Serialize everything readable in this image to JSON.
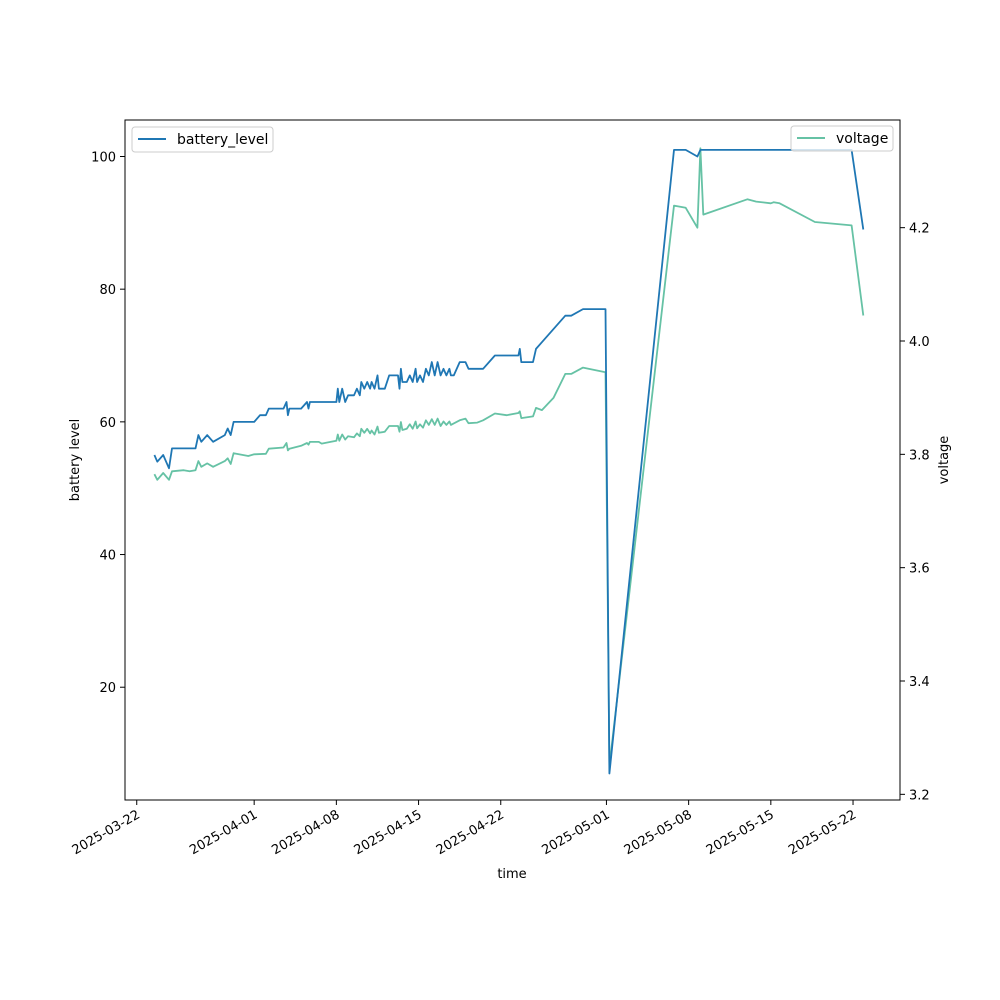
{
  "chart_data": {
    "type": "line",
    "title": "",
    "xlabel": "time",
    "ylabel_left": "battery level",
    "ylabel_right": "voltage",
    "xlim": [
      "2025-03-21T00:00",
      "2025-05-26T00:00"
    ],
    "ylim_left": [
      3,
      105.5
    ],
    "ylim_right": [
      3.19,
      4.39
    ],
    "x_ticks": [
      "2025-03-22",
      "2025-04-01",
      "2025-04-08",
      "2025-04-15",
      "2025-04-22",
      "2025-05-01",
      "2025-05-08",
      "2025-05-15",
      "2025-05-22"
    ],
    "y_ticks_left": [
      20,
      40,
      60,
      80,
      100
    ],
    "y_ticks_right": [
      "3.2",
      "3.4",
      "3.6",
      "3.8",
      "4.0",
      "4.2"
    ],
    "grid": false,
    "legend_left": {
      "position": "upper-left",
      "label": "battery_level",
      "color": "#1f77b4"
    },
    "legend_right": {
      "position": "upper-right",
      "label": "voltage",
      "color": "#66c2a5"
    },
    "series": [
      {
        "name": "battery_level",
        "axis": "left",
        "color": "#1f77b4",
        "points": [
          [
            "2025-03-23T12:00",
            55
          ],
          [
            "2025-03-23T18:00",
            54
          ],
          [
            "2025-03-24T06:00",
            55
          ],
          [
            "2025-03-24T18:00",
            53
          ],
          [
            "2025-03-25T00:00",
            56
          ],
          [
            "2025-03-27T00:00",
            56
          ],
          [
            "2025-03-27T06:00",
            58
          ],
          [
            "2025-03-27T12:00",
            57
          ],
          [
            "2025-03-28T00:00",
            58
          ],
          [
            "2025-03-28T12:00",
            57
          ],
          [
            "2025-03-29T12:00",
            58
          ],
          [
            "2025-03-29T18:00",
            59
          ],
          [
            "2025-03-30T00:00",
            58
          ],
          [
            "2025-03-30T06:00",
            60
          ],
          [
            "2025-04-01T00:00",
            60
          ],
          [
            "2025-04-01T12:00",
            61
          ],
          [
            "2025-04-02T00:00",
            61
          ],
          [
            "2025-04-02T06:00",
            62
          ],
          [
            "2025-04-03T12:00",
            62
          ],
          [
            "2025-04-03T18:00",
            63
          ],
          [
            "2025-04-03T21:00",
            61
          ],
          [
            "2025-04-04T00:00",
            62
          ],
          [
            "2025-04-05T00:00",
            62
          ],
          [
            "2025-04-05T12:00",
            63
          ],
          [
            "2025-04-05T15:00",
            62
          ],
          [
            "2025-04-05T18:00",
            63
          ],
          [
            "2025-04-08T00:00",
            63
          ],
          [
            "2025-04-08T03:00",
            65
          ],
          [
            "2025-04-08T06:00",
            63
          ],
          [
            "2025-04-08T12:00",
            65
          ],
          [
            "2025-04-08T18:00",
            63
          ],
          [
            "2025-04-09T00:00",
            64
          ],
          [
            "2025-04-09T12:00",
            64
          ],
          [
            "2025-04-09T18:00",
            65
          ],
          [
            "2025-04-10T00:00",
            64
          ],
          [
            "2025-04-10T03:00",
            66
          ],
          [
            "2025-04-10T09:00",
            65
          ],
          [
            "2025-04-10T15:00",
            66
          ],
          [
            "2025-04-10T21:00",
            65
          ],
          [
            "2025-04-11T00:00",
            66
          ],
          [
            "2025-04-11T06:00",
            65
          ],
          [
            "2025-04-11T12:00",
            67
          ],
          [
            "2025-04-11T15:00",
            65
          ],
          [
            "2025-04-12T03:00",
            65
          ],
          [
            "2025-04-12T12:00",
            67
          ],
          [
            "2025-04-13T06:00",
            67
          ],
          [
            "2025-04-13T09:00",
            65
          ],
          [
            "2025-04-13T12:00",
            68
          ],
          [
            "2025-04-13T15:00",
            66
          ],
          [
            "2025-04-14T00:00",
            66
          ],
          [
            "2025-04-14T06:00",
            67
          ],
          [
            "2025-04-14T12:00",
            66
          ],
          [
            "2025-04-14T18:00",
            68
          ],
          [
            "2025-04-14T21:00",
            66
          ],
          [
            "2025-04-15T03:00",
            67
          ],
          [
            "2025-04-15T09:00",
            66
          ],
          [
            "2025-04-15T15:00",
            68
          ],
          [
            "2025-04-15T21:00",
            67
          ],
          [
            "2025-04-16T03:00",
            69
          ],
          [
            "2025-04-16T09:00",
            67
          ],
          [
            "2025-04-16T15:00",
            69
          ],
          [
            "2025-04-16T21:00",
            67
          ],
          [
            "2025-04-17T03:00",
            68
          ],
          [
            "2025-04-17T09:00",
            67
          ],
          [
            "2025-04-17T15:00",
            68
          ],
          [
            "2025-04-17T18:00",
            67
          ],
          [
            "2025-04-18T00:00",
            67
          ],
          [
            "2025-04-18T12:00",
            69
          ],
          [
            "2025-04-19T00:00",
            69
          ],
          [
            "2025-04-19T06:00",
            68
          ],
          [
            "2025-04-20T12:00",
            68
          ],
          [
            "2025-04-21T12:00",
            70
          ],
          [
            "2025-04-23T12:00",
            70
          ],
          [
            "2025-04-23T15:00",
            71
          ],
          [
            "2025-04-23T18:00",
            69
          ],
          [
            "2025-04-24T18:00",
            69
          ],
          [
            "2025-04-25T00:00",
            71
          ],
          [
            "2025-04-25T12:00",
            72
          ],
          [
            "2025-04-27T12:00",
            76
          ],
          [
            "2025-04-28T00:00",
            76
          ],
          [
            "2025-04-29T00:00",
            77
          ],
          [
            "2025-04-30T22:00",
            77
          ],
          [
            "2025-05-01T06:00",
            7
          ],
          [
            "2025-05-06T18:00",
            101
          ],
          [
            "2025-05-07T18:00",
            101
          ],
          [
            "2025-05-08T18:00",
            100
          ],
          [
            "2025-05-09T00:00",
            101
          ],
          [
            "2025-05-21T21:00",
            101
          ],
          [
            "2025-05-22T21:00",
            89
          ]
        ]
      },
      {
        "name": "voltage",
        "axis": "right",
        "color": "#66c2a5",
        "points": [
          [
            "2025-03-23T12:00",
            3.765
          ],
          [
            "2025-03-23T18:00",
            3.755
          ],
          [
            "2025-03-24T06:00",
            3.767
          ],
          [
            "2025-03-24T18:00",
            3.755
          ],
          [
            "2025-03-25T00:00",
            3.77
          ],
          [
            "2025-03-26T00:00",
            3.772
          ],
          [
            "2025-03-26T12:00",
            3.77
          ],
          [
            "2025-03-27T00:00",
            3.772
          ],
          [
            "2025-03-27T06:00",
            3.788
          ],
          [
            "2025-03-27T12:00",
            3.778
          ],
          [
            "2025-03-28T00:00",
            3.784
          ],
          [
            "2025-03-28T12:00",
            3.778
          ],
          [
            "2025-03-29T12:00",
            3.788
          ],
          [
            "2025-03-29T18:00",
            3.793
          ],
          [
            "2025-03-30T00:00",
            3.783
          ],
          [
            "2025-03-30T06:00",
            3.802
          ],
          [
            "2025-03-31T12:00",
            3.797
          ],
          [
            "2025-04-01T00:00",
            3.8
          ],
          [
            "2025-04-02T00:00",
            3.801
          ],
          [
            "2025-04-02T06:00",
            3.81
          ],
          [
            "2025-04-03T12:00",
            3.812
          ],
          [
            "2025-04-03T18:00",
            3.82
          ],
          [
            "2025-04-03T21:00",
            3.807
          ],
          [
            "2025-04-04T00:00",
            3.81
          ],
          [
            "2025-04-05T00:00",
            3.815
          ],
          [
            "2025-04-05T12:00",
            3.82
          ],
          [
            "2025-04-05T15:00",
            3.817
          ],
          [
            "2025-04-05T18:00",
            3.822
          ],
          [
            "2025-04-06T12:00",
            3.822
          ],
          [
            "2025-04-06T18:00",
            3.819
          ],
          [
            "2025-04-07T12:00",
            3.822
          ],
          [
            "2025-04-08T00:00",
            3.824
          ],
          [
            "2025-04-08T03:00",
            3.835
          ],
          [
            "2025-04-08T06:00",
            3.824
          ],
          [
            "2025-04-08T12:00",
            3.835
          ],
          [
            "2025-04-08T18:00",
            3.826
          ],
          [
            "2025-04-09T00:00",
            3.832
          ],
          [
            "2025-04-09T12:00",
            3.83
          ],
          [
            "2025-04-09T18:00",
            3.837
          ],
          [
            "2025-04-10T00:00",
            3.832
          ],
          [
            "2025-04-10T03:00",
            3.845
          ],
          [
            "2025-04-10T09:00",
            3.838
          ],
          [
            "2025-04-10T15:00",
            3.845
          ],
          [
            "2025-04-10T21:00",
            3.837
          ],
          [
            "2025-04-11T00:00",
            3.842
          ],
          [
            "2025-04-11T06:00",
            3.835
          ],
          [
            "2025-04-11T12:00",
            3.849
          ],
          [
            "2025-04-11T15:00",
            3.838
          ],
          [
            "2025-04-12T03:00",
            3.84
          ],
          [
            "2025-04-12T12:00",
            3.85
          ],
          [
            "2025-04-13T06:00",
            3.85
          ],
          [
            "2025-04-13T09:00",
            3.84
          ],
          [
            "2025-04-13T12:00",
            3.857
          ],
          [
            "2025-04-13T15:00",
            3.843
          ],
          [
            "2025-04-14T00:00",
            3.845
          ],
          [
            "2025-04-14T06:00",
            3.853
          ],
          [
            "2025-04-14T12:00",
            3.845
          ],
          [
            "2025-04-14T18:00",
            3.858
          ],
          [
            "2025-04-14T21:00",
            3.846
          ],
          [
            "2025-04-15T03:00",
            3.853
          ],
          [
            "2025-04-15T09:00",
            3.847
          ],
          [
            "2025-04-15T15:00",
            3.86
          ],
          [
            "2025-04-15T21:00",
            3.852
          ],
          [
            "2025-04-16T03:00",
            3.862
          ],
          [
            "2025-04-16T09:00",
            3.852
          ],
          [
            "2025-04-16T15:00",
            3.863
          ],
          [
            "2025-04-16T21:00",
            3.85
          ],
          [
            "2025-04-17T03:00",
            3.858
          ],
          [
            "2025-04-17T09:00",
            3.852
          ],
          [
            "2025-04-17T15:00",
            3.858
          ],
          [
            "2025-04-17T18:00",
            3.852
          ],
          [
            "2025-04-18T12:00",
            3.86
          ],
          [
            "2025-04-19T00:00",
            3.863
          ],
          [
            "2025-04-19T06:00",
            3.855
          ],
          [
            "2025-04-20T00:00",
            3.856
          ],
          [
            "2025-04-20T12:00",
            3.86
          ],
          [
            "2025-04-21T12:00",
            3.872
          ],
          [
            "2025-04-22T12:00",
            3.869
          ],
          [
            "2025-04-23T12:00",
            3.873
          ],
          [
            "2025-04-23T15:00",
            3.876
          ],
          [
            "2025-04-23T18:00",
            3.864
          ],
          [
            "2025-04-24T18:00",
            3.867
          ],
          [
            "2025-04-25T00:00",
            3.882
          ],
          [
            "2025-04-25T12:00",
            3.878
          ],
          [
            "2025-04-26T12:00",
            3.9
          ],
          [
            "2025-04-27T12:00",
            3.942
          ],
          [
            "2025-04-28T00:00",
            3.942
          ],
          [
            "2025-04-29T00:00",
            3.953
          ],
          [
            "2025-04-30T22:00",
            3.945
          ],
          [
            "2025-05-01T06:00",
            3.25
          ],
          [
            "2025-05-06T18:00",
            4.239
          ],
          [
            "2025-05-07T18:00",
            4.235
          ],
          [
            "2025-05-08T18:00",
            4.2
          ],
          [
            "2025-05-09T00:00",
            4.34
          ],
          [
            "2025-05-09T06:00",
            4.223
          ],
          [
            "2025-05-13T00:00",
            4.25
          ],
          [
            "2025-05-13T18:00",
            4.246
          ],
          [
            "2025-05-15T00:00",
            4.243
          ],
          [
            "2025-05-15T06:00",
            4.245
          ],
          [
            "2025-05-15T18:00",
            4.243
          ],
          [
            "2025-05-18T18:00",
            4.21
          ],
          [
            "2025-05-21T21:00",
            4.204
          ],
          [
            "2025-05-22T21:00",
            4.045
          ]
        ]
      }
    ]
  }
}
